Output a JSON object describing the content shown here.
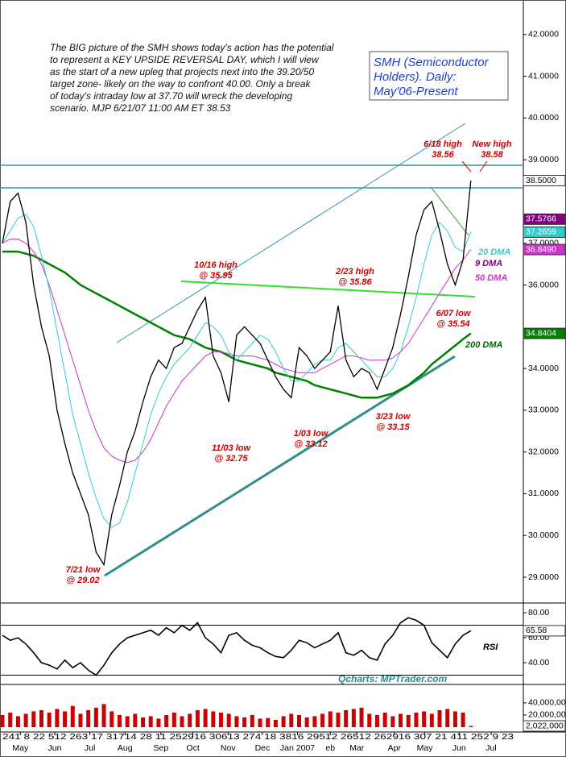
{
  "chart_data": {
    "type": "line",
    "title_lines": [
      "SMH (Semiconductor",
      "Holders). Daily:",
      "May'06-Present"
    ],
    "commentary": [
      "The BIG picture of the SMH shows today's action has the potential",
      "to represent a KEY UPSIDE REVERSAL DAY, which I will view",
      "as the start of a new upleg that projects next into the 39.20/50",
      "target zone- likely on the way to confront 40.00. Only a break",
      "of today's intraday low at 37.70 will wreck the developing",
      "scenario.  MJP  6/21/07  11:00 AM ET  38.53"
    ],
    "annotations": [
      [
        "6/18 high",
        "38.56"
      ],
      [
        "New high",
        "38.58"
      ],
      [
        "10/16 high",
        "@ 35.95"
      ],
      [
        "2/23 high",
        "@ 35.86"
      ],
      [
        "6/07 low",
        "@ 35.54"
      ],
      [
        "11/03 low",
        "@ 32.75"
      ],
      [
        "1/03 low",
        "@ 33.12"
      ],
      [
        "3/23 low",
        "@ 33.15"
      ],
      [
        "7/21 low",
        "@ 29.02"
      ]
    ],
    "dma_labels": [
      "20 DMA",
      "9 DMA",
      "50 DMA",
      "200 DMA"
    ],
    "source": "Qcharts: MPTrader.com",
    "x_day_labels": "241 8   22   512  263  17   31714  28   11   252916   30613   274   18   3816   29512   26512   262916   307   21   411   252 9   23",
    "x": [
      0,
      1,
      2,
      3,
      4,
      5,
      6,
      7,
      8,
      9,
      10,
      11,
      12,
      13,
      14,
      15,
      16,
      17,
      18,
      19,
      20,
      21,
      22,
      23,
      24,
      25,
      26,
      27,
      28,
      29,
      30,
      31,
      32,
      33,
      34,
      35,
      36,
      37,
      38,
      39,
      40,
      41,
      42,
      43,
      44,
      45,
      46,
      47,
      48,
      49,
      50,
      51,
      52,
      53,
      54,
      55,
      56,
      57,
      58,
      59,
      60
    ],
    "xlim": [
      0,
      66
    ],
    "xticks": [
      {
        "value": 2.3,
        "label": "May"
      },
      {
        "value": 6.7,
        "label": "Jun"
      },
      {
        "value": 11.2,
        "label": "Jul"
      },
      {
        "value": 15.7,
        "label": "Aug"
      },
      {
        "value": 20.3,
        "label": "Sep"
      },
      {
        "value": 24.4,
        "label": "Oct"
      },
      {
        "value": 28.9,
        "label": "Nov"
      },
      {
        "value": 33.3,
        "label": "Dec"
      },
      {
        "value": 37.8,
        "label": "Jan 2007"
      },
      {
        "value": 42.0,
        "label": "eb"
      },
      {
        "value": 45.4,
        "label": "Mar"
      },
      {
        "value": 50.2,
        "label": "Apr"
      },
      {
        "value": 54.1,
        "label": "May"
      },
      {
        "value": 58.5,
        "label": "Jun"
      },
      {
        "value": 62.6,
        "label": "Jul"
      }
    ],
    "ylim": [
      28.44,
      42.73
    ],
    "yticks": [
      {
        "value": 42,
        "label": "42.0000"
      },
      {
        "value": 41,
        "label": "41.0000"
      },
      {
        "value": 40,
        "label": "40.0000"
      },
      {
        "value": 39,
        "label": "39.0000"
      },
      {
        "value": 37,
        "label": "37.0000"
      },
      {
        "value": 36,
        "label": "36.0000"
      },
      {
        "value": 34,
        "label": "34.0000"
      },
      {
        "value": 33,
        "label": "33.0000"
      },
      {
        "value": 32,
        "label": "32.0000"
      },
      {
        "value": 31,
        "label": "31.0000"
      },
      {
        "value": 30,
        "label": "30.0000"
      },
      {
        "value": 29,
        "label": "29.0000"
      }
    ],
    "y_markers": [
      {
        "value": 38.5,
        "label": "38.5000",
        "color": "#ffffff"
      },
      {
        "value": 37.5766,
        "label": "37.5766",
        "color": "#800080"
      },
      {
        "value": 37.2659,
        "label": "37.2659",
        "color": "#33cccc"
      },
      {
        "value": 36.849,
        "label": "36.8490",
        "color": "#cc33cc"
      },
      {
        "value": 34.8404,
        "label": "34.8404",
        "color": "#008000"
      }
    ],
    "series": [
      {
        "color": "#000000",
        "values": [
          37.0,
          38.0,
          38.2,
          37.5,
          36.0,
          35.0,
          34.3,
          33.0,
          32.2,
          31.5,
          31.0,
          30.5,
          29.6,
          29.3,
          30.5,
          31.2,
          32.0,
          32.5,
          33.2,
          33.8,
          34.2,
          34.0,
          34.5,
          34.6,
          35.0,
          35.4,
          35.7,
          34.3,
          33.9,
          33.2,
          34.8,
          35.0,
          34.8,
          34.6,
          34.2,
          33.8,
          33.5,
          33.3,
          34.5,
          34.3,
          34.0,
          34.2,
          34.4,
          35.5,
          34.2,
          33.8,
          34.0,
          33.9,
          33.5,
          34.0,
          34.5,
          35.3,
          36.2,
          37.2,
          37.8,
          38.0,
          37.3,
          36.5,
          36.0,
          36.6,
          38.5
        ]
      },
      {
        "color": "#33cccc",
        "values": [
          37.0,
          37.3,
          37.6,
          37.7,
          37.4,
          36.7,
          35.9,
          34.9,
          33.9,
          32.9,
          32.2,
          31.5,
          30.9,
          30.4,
          30.2,
          30.3,
          30.8,
          31.5,
          32.2,
          32.9,
          33.4,
          33.8,
          34.1,
          34.3,
          34.5,
          34.8,
          35.1,
          35.0,
          34.8,
          34.4,
          34.2,
          34.4,
          34.6,
          34.8,
          34.7,
          34.4,
          34.0,
          33.7,
          33.7,
          33.9,
          34.1,
          34.2,
          34.2,
          34.5,
          34.6,
          34.4,
          34.2,
          34.0,
          33.8,
          33.8,
          34.0,
          34.4,
          35.0,
          35.7,
          36.5,
          37.2,
          37.5,
          37.3,
          36.9,
          36.8,
          37.27
        ]
      },
      {
        "color": "#cc33cc",
        "values": [
          37.0,
          37.1,
          37.1,
          37.0,
          36.8,
          36.5,
          36.0,
          35.4,
          34.8,
          34.2,
          33.6,
          33.0,
          32.5,
          32.1,
          31.9,
          31.8,
          31.75,
          31.8,
          32.0,
          32.3,
          32.7,
          33.1,
          33.4,
          33.7,
          33.9,
          34.1,
          34.3,
          34.4,
          34.4,
          34.35,
          34.3,
          34.3,
          34.3,
          34.25,
          34.2,
          34.1,
          34.0,
          33.95,
          33.9,
          33.9,
          33.9,
          34.0,
          34.1,
          34.2,
          34.3,
          34.3,
          34.25,
          34.2,
          34.2,
          34.2,
          34.25,
          34.4,
          34.6,
          34.9,
          35.2,
          35.5,
          35.8,
          36.1,
          36.4,
          36.6,
          36.85
        ]
      },
      {
        "color": "#008000",
        "values": [
          36.8,
          36.8,
          36.8,
          36.75,
          36.7,
          36.6,
          36.5,
          36.4,
          36.3,
          36.15,
          36.0,
          35.9,
          35.8,
          35.7,
          35.6,
          35.5,
          35.4,
          35.3,
          35.2,
          35.1,
          35.0,
          34.9,
          34.8,
          34.75,
          34.7,
          34.6,
          34.5,
          34.45,
          34.4,
          34.3,
          34.2,
          34.15,
          34.1,
          34.05,
          34.0,
          33.9,
          33.85,
          33.8,
          33.75,
          33.7,
          33.6,
          33.55,
          33.5,
          33.45,
          33.4,
          33.35,
          33.3,
          33.3,
          33.3,
          33.35,
          33.4,
          33.5,
          33.6,
          33.75,
          33.9,
          34.1,
          34.25,
          34.4,
          34.55,
          34.7,
          34.84
        ]
      }
    ],
    "rsi": {
      "label": "RSI",
      "color": "#000000",
      "ylim": [
        23.9,
        85.2
      ],
      "yticks": [
        {
          "value": 80,
          "label": "80.00"
        },
        {
          "value": 60,
          "label": "60.00"
        },
        {
          "value": 40,
          "label": "40.00"
        }
      ],
      "ref_lines": [
        70,
        30
      ],
      "marker": {
        "value": 65.58,
        "label": "65.58"
      },
      "values": [
        62,
        58,
        60,
        55,
        48,
        40,
        38,
        35,
        42,
        36,
        40,
        34,
        30,
        38,
        48,
        55,
        60,
        62,
        64,
        66,
        62,
        68,
        64,
        70,
        66,
        72,
        60,
        55,
        48,
        62,
        64,
        58,
        54,
        52,
        48,
        45,
        44,
        50,
        58,
        56,
        52,
        55,
        58,
        64,
        48,
        46,
        50,
        44,
        42,
        55,
        62,
        72,
        76,
        74,
        70,
        56,
        50,
        44,
        55,
        62,
        65.58
      ]
    },
    "volume": {
      "color": "#cc0000",
      "ylim": [
        0,
        69000000
      ],
      "yticks": [
        {
          "value": 40000000,
          "label": "40,000,000"
        },
        {
          "value": 20000000,
          "label": "20,000,000"
        }
      ],
      "marker": {
        "value": 2022000,
        "label": "2,022,000"
      },
      "values": [
        20000000,
        24000000,
        18000000,
        22000000,
        26000000,
        28000000,
        24000000,
        30000000,
        26000000,
        35000000,
        22000000,
        28000000,
        32000000,
        38000000,
        26000000,
        20000000,
        18000000,
        22000000,
        16000000,
        18000000,
        14000000,
        20000000,
        24000000,
        18000000,
        22000000,
        28000000,
        30000000,
        26000000,
        24000000,
        22000000,
        18000000,
        16000000,
        20000000,
        14000000,
        15000000,
        12000000,
        18000000,
        22000000,
        20000000,
        16000000,
        18000000,
        22000000,
        26000000,
        24000000,
        28000000,
        30000000,
        32000000,
        22000000,
        20000000,
        24000000,
        18000000,
        22000000,
        20000000,
        24000000,
        26000000,
        22000000,
        28000000,
        30000000,
        26000000,
        24000000,
        2022000
      ]
    }
  }
}
